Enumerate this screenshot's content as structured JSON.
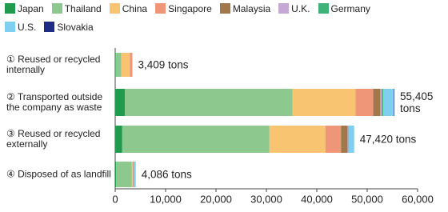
{
  "chart_data": {
    "type": "stacked-bar-horizontal",
    "categories": [
      "① Reused or recycled internally",
      "② Transported outside the company as waste",
      "③ Reused or recycled externally",
      "④ Disposed of as landfill"
    ],
    "series": [
      {
        "name": "Japan",
        "color": "#1f9a4e",
        "values": [
          109,
          1900,
          1400,
          200
        ]
      },
      {
        "name": "Thailand",
        "color": "#8dc98e",
        "values": [
          1100,
          33300,
          29200,
          3100
        ]
      },
      {
        "name": "China",
        "color": "#f8c471",
        "values": [
          1700,
          12500,
          11100,
          200
        ]
      },
      {
        "name": "Singapore",
        "color": "#ef9678",
        "values": [
          500,
          3500,
          3100,
          100
        ]
      },
      {
        "name": "Malaysia",
        "color": "#a0784a",
        "values": [
          0,
          1400,
          1300,
          100
        ]
      },
      {
        "name": "U.K.",
        "color": "#c5a8d4",
        "values": [
          0,
          300,
          100,
          0
        ]
      },
      {
        "name": "Germany",
        "color": "#3fb27a",
        "values": [
          0,
          300,
          100,
          0
        ]
      },
      {
        "name": "U.S.",
        "color": "#7fd0f0",
        "values": [
          0,
          2100,
          1120,
          386
        ]
      },
      {
        "name": "Slovakia",
        "color": "#1e2d83",
        "values": [
          0,
          105,
          0,
          0
        ]
      }
    ],
    "totals": [
      3409,
      55405,
      47420,
      4086
    ],
    "total_labels": [
      "3,409 tons",
      "55,405 tons",
      "47,420 tons",
      "4,086 tons"
    ],
    "xlim": [
      0,
      60000
    ],
    "xticks": [
      0,
      {
        "value": 10000,
        "label": "10,000"
      },
      {
        "value": 20000,
        "label": "20,000"
      },
      {
        "value": 30000,
        "label": "30,000"
      },
      {
        "value": 40000,
        "label": "40,000"
      },
      {
        "value": 50000,
        "label": "50,000"
      },
      {
        "value": 60000,
        "label": "60,000"
      }
    ]
  }
}
